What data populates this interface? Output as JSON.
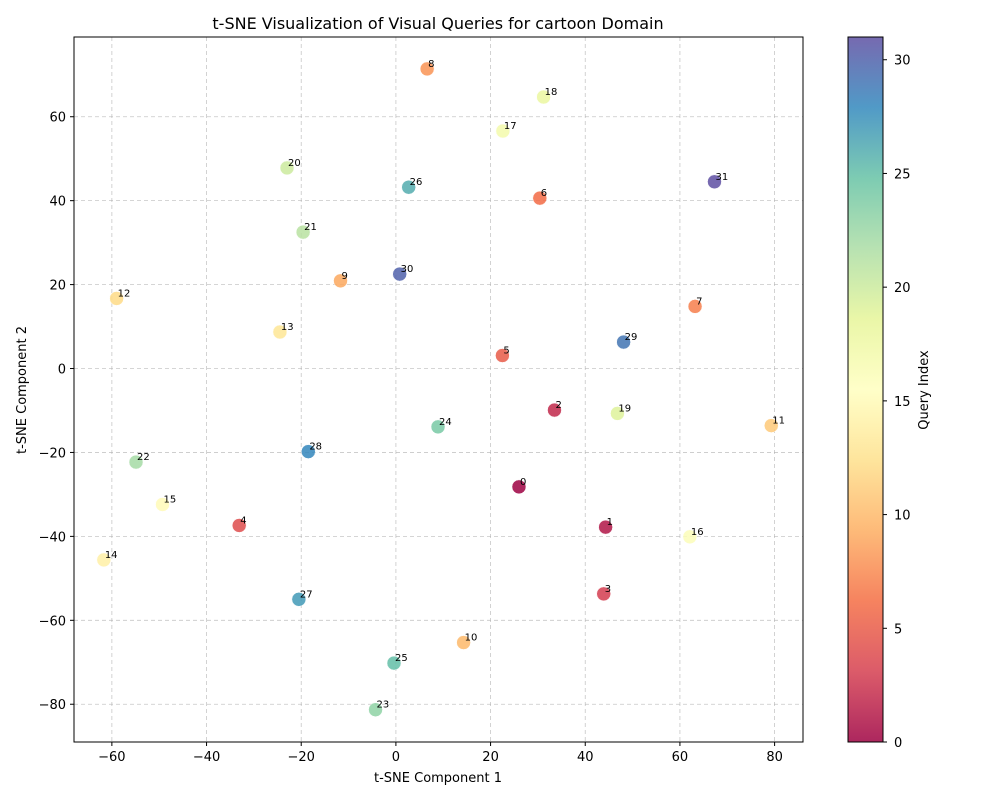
{
  "chart_data": {
    "type": "scatter",
    "title": "t-SNE Visualization of Visual Queries for cartoon Domain",
    "xlabel": "t-SNE Component 1",
    "ylabel": "t-SNE Component 2",
    "xlim": [
      -68,
      86
    ],
    "ylim": [
      -89,
      79
    ],
    "xticks": [
      -60,
      -40,
      -20,
      0,
      20,
      40,
      60,
      80
    ],
    "yticks": [
      -80,
      -60,
      -40,
      -20,
      0,
      20,
      40,
      60
    ],
    "grid": true,
    "colormap": "Spectral",
    "colorbar": {
      "label": "Query Index",
      "min": 0,
      "max": 31,
      "ticks": [
        0,
        5,
        10,
        15,
        20,
        25,
        30
      ]
    },
    "points": [
      {
        "label": "0",
        "x": 26.0,
        "y": -28.2
      },
      {
        "label": "1",
        "x": 44.3,
        "y": -37.8
      },
      {
        "label": "2",
        "x": 33.5,
        "y": -9.9
      },
      {
        "label": "3",
        "x": 43.9,
        "y": -53.7
      },
      {
        "label": "4",
        "x": -33.1,
        "y": -37.4
      },
      {
        "label": "5",
        "x": 22.5,
        "y": 3.1
      },
      {
        "label": "6",
        "x": 30.4,
        "y": 40.6
      },
      {
        "label": "7",
        "x": 63.2,
        "y": 14.8
      },
      {
        "label": "8",
        "x": 6.6,
        "y": 71.4
      },
      {
        "label": "9",
        "x": -11.7,
        "y": 20.9
      },
      {
        "label": "10",
        "x": 14.3,
        "y": -65.3
      },
      {
        "label": "11",
        "x": 79.3,
        "y": -13.6
      },
      {
        "label": "12",
        "x": -59.0,
        "y": 16.7
      },
      {
        "label": "13",
        "x": -24.5,
        "y": 8.7
      },
      {
        "label": "14",
        "x": -61.7,
        "y": -45.6
      },
      {
        "label": "15",
        "x": -49.3,
        "y": -32.4
      },
      {
        "label": "16",
        "x": 62.1,
        "y": -40.1
      },
      {
        "label": "17",
        "x": 22.6,
        "y": 56.6
      },
      {
        "label": "18",
        "x": 31.2,
        "y": 64.7
      },
      {
        "label": "19",
        "x": 46.8,
        "y": -10.7
      },
      {
        "label": "20",
        "x": -23.0,
        "y": 47.8
      },
      {
        "label": "21",
        "x": -19.6,
        "y": 32.5
      },
      {
        "label": "22",
        "x": -54.9,
        "y": -22.3
      },
      {
        "label": "23",
        "x": -4.3,
        "y": -81.3
      },
      {
        "label": "24",
        "x": 8.9,
        "y": -13.9
      },
      {
        "label": "25",
        "x": -0.4,
        "y": -70.2
      },
      {
        "label": "26",
        "x": 2.7,
        "y": 43.2
      },
      {
        "label": "27",
        "x": -20.5,
        "y": -55.0
      },
      {
        "label": "28",
        "x": -18.5,
        "y": -19.8
      },
      {
        "label": "29",
        "x": 48.1,
        "y": 6.3
      },
      {
        "label": "30",
        "x": 0.8,
        "y": 22.5
      },
      {
        "label": "31",
        "x": 67.3,
        "y": 44.5
      }
    ]
  }
}
